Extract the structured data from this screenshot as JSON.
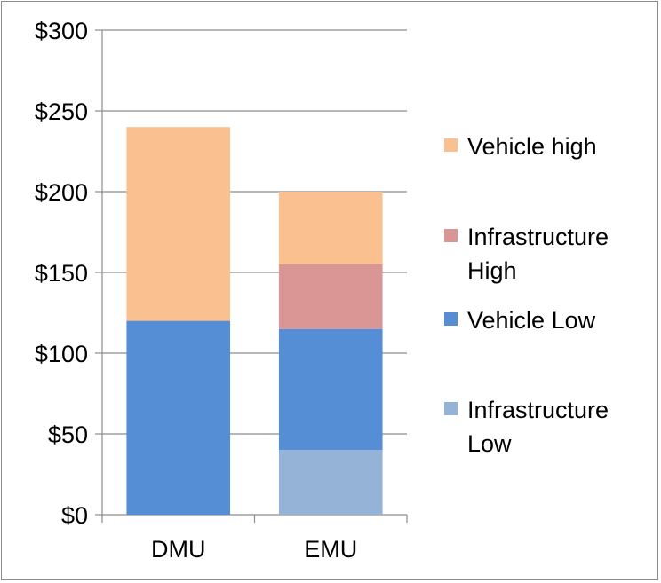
{
  "chart_data": {
    "type": "bar",
    "stacked": true,
    "categories": [
      "DMU",
      "EMU"
    ],
    "series": [
      {
        "name": "Infrastructure Low",
        "color": "#95b3d7",
        "values": [
          0,
          40
        ]
      },
      {
        "name": "Vehicle Low",
        "color": "#558ed5",
        "values": [
          120,
          75
        ]
      },
      {
        "name": "Infrastructure High",
        "color": "#d99694",
        "values": [
          0,
          40
        ]
      },
      {
        "name": "Vehicle high",
        "color": "#fac090",
        "values": [
          120,
          45
        ]
      }
    ],
    "legend_order": [
      {
        "line1": "Vehicle high",
        "line2": "",
        "color": "#fac090"
      },
      {
        "line1": "Infrastructure",
        "line2": "High",
        "color": "#d99694"
      },
      {
        "line1": "Vehicle Low",
        "line2": "",
        "color": "#558ed5"
      },
      {
        "line1": "Infrastructure",
        "line2": "Low",
        "color": "#95b3d7"
      }
    ],
    "y_ticks": [
      "$0",
      "$50",
      "$100",
      "$150",
      "$200",
      "$250",
      "$300"
    ],
    "ylim": [
      0,
      300
    ],
    "grid": true,
    "legend_position": "right",
    "title": "",
    "xlabel": "",
    "ylabel": ""
  }
}
